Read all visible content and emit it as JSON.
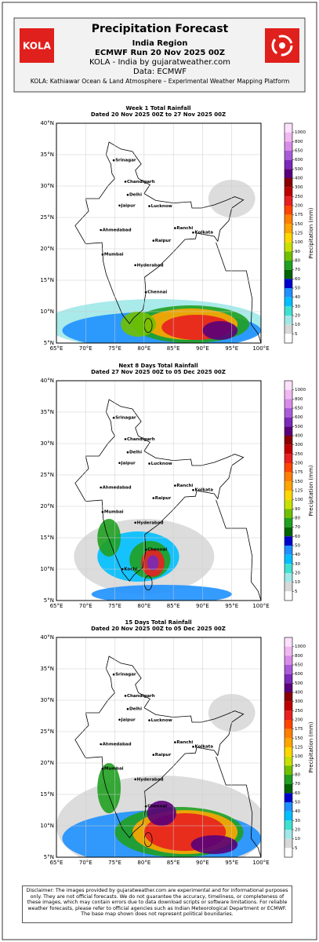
{
  "header": {
    "logo_left": "KOLA",
    "title": "Precipitation Forecast",
    "region": "India Region",
    "run": "ECMWF Run 20 Nov 2025 00Z",
    "source": "KOLA - India by gujaratweather.com",
    "data": "Data: ECMWF",
    "platform": "KOLA: Kathiawar Ocean & Land Atmosphere – Experimental Weather Mapping Platform"
  },
  "axes": {
    "xticks": [
      "65°E",
      "70°E",
      "75°E",
      "80°E",
      "85°E",
      "90°E",
      "95°E",
      "100°E"
    ],
    "yticks": [
      "40°N",
      "35°N",
      "30°N",
      "25°N",
      "20°N",
      "15°N",
      "10°N",
      "5°N"
    ]
  },
  "colorbar": {
    "label": "Precipitation (mm)",
    "ticks": [
      "1000",
      "800",
      "650",
      "600",
      "500",
      "400",
      "300",
      "250",
      "200",
      "175",
      "150",
      "125",
      "100",
      "90",
      "80",
      "70",
      "60",
      "50",
      "40",
      "30",
      "20",
      "10",
      "5"
    ]
  },
  "cities": [
    "Srinagar",
    "Chandigarh",
    "Delhi",
    "Jaipur",
    "Lucknow",
    "Ahmedabad",
    "Ranchi",
    "Kolkata",
    "Raipur",
    "Mumbai",
    "Hyderabad",
    "Chennai"
  ],
  "panels": [
    {
      "title": "Week 1 Total Rainfall",
      "dated": "Dated 20 Nov 2025 00Z to 27 Nov 2025 00Z",
      "extra_cities": []
    },
    {
      "title": "Next 8 Days Total Rainfall",
      "dated": "Dated 27 Nov 2025 00Z to 05 Dec 2025 00Z",
      "extra_cities": [
        "Kochi"
      ]
    },
    {
      "title": "15 Days Total Rainfall",
      "dated": "Dated 20 Nov 2025 00Z to 05 Dec 2025 00Z",
      "extra_cities": []
    }
  ],
  "disclaimer": "Disclaimer: The images provided by gujaratweather.com are experimental and for informational purposes only. They are not official forecasts. We do not guarantee the accuracy, timeliness, or completeness of these images, which may contain errors due to data download scripts or software limitations. For reliable weather forecasts, please refer to official agencies such as Indian Meteorological Department or ECMWF. The base map shown does not represent political boundaries."
}
